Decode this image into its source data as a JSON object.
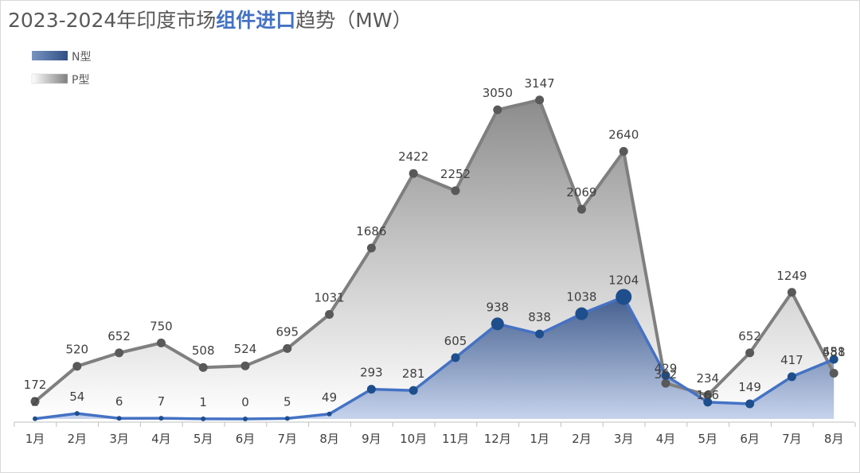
{
  "title": {
    "prefix": "2023-2024年印度市场",
    "highlight": "组件进口",
    "suffix": "趋势（MW）"
  },
  "colors": {
    "n_line": "#4472c4",
    "n_marker": "#1f4e8c",
    "p_line": "#7f7f7f",
    "p_marker": "#595959",
    "label": "#404040",
    "axis": "#bfbfbf"
  },
  "chart_data": {
    "type": "area",
    "title": "2023-2024年印度市场组件进口趋势（MW）",
    "xlabel": "",
    "ylabel": "",
    "ylim": [
      0,
      3500
    ],
    "grid": false,
    "legend_position": "top-left",
    "categories": [
      "1月",
      "2月",
      "3月",
      "4月",
      "5月",
      "6月",
      "7月",
      "8月",
      "9月",
      "10月",
      "11月",
      "12月",
      "1月",
      "2月",
      "3月",
      "4月",
      "5月",
      "6月",
      "7月",
      "8月"
    ],
    "series": [
      {
        "name": "N型",
        "values": [
          2,
          54,
          6,
          7,
          1,
          0,
          5,
          49,
          293,
          281,
          605,
          938,
          838,
          1038,
          1204,
          429,
          166,
          149,
          417,
          588
        ]
      },
      {
        "name": "P型",
        "values": [
          172,
          520,
          652,
          750,
          508,
          524,
          695,
          1031,
          1686,
          2422,
          2252,
          3050,
          3147,
          2069,
          2640,
          352,
          234,
          652,
          1249,
          451
        ]
      }
    ]
  }
}
